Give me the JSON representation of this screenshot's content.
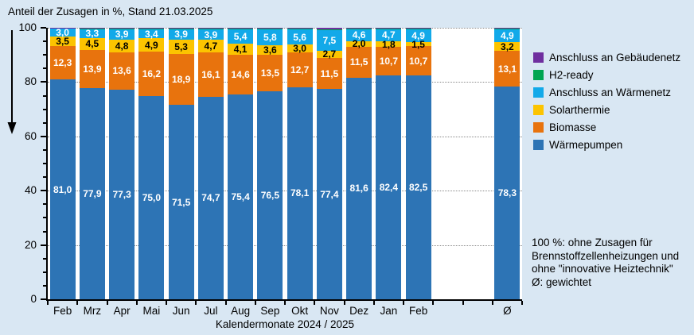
{
  "title": "Anteil der Zusagen in %, Stand 21.03.2025",
  "colors": {
    "background": "#d9e7f3",
    "plot_background": "#ffffff",
    "axis": "#000000",
    "gridline": "#8a8a8a",
    "waermepumpen": "#2d74b5",
    "biomasse": "#e8730d",
    "solarthermie": "#fcc400",
    "waermenetz": "#12a9e9",
    "h2ready": "#00a551",
    "gebaeudenetz": "#6f2f9f"
  },
  "chart_data": {
    "type": "bar",
    "stacked": true,
    "stacked_to_100": true,
    "title": "Anteil der Zusagen in %, Stand 21.03.2025",
    "xlabel": "Kalendermonate 2024 / 2025",
    "ylabel": "Anteil der Zusagen in %",
    "ylim": [
      0,
      100
    ],
    "y_major_ticks": [
      0,
      20,
      40,
      60,
      80,
      100
    ],
    "y_minor_tick_step": 5,
    "grid": "dotted horizontal at major ticks",
    "legend_position": "right",
    "categories": [
      "Feb",
      "Mrz",
      "Apr",
      "Mai",
      "Jun",
      "Jul",
      "Aug",
      "Sep",
      "Okt",
      "Nov",
      "Dez",
      "Jan",
      "Feb",
      "Ø"
    ],
    "gap_before_last_category": true,
    "series": [
      {
        "name": "Wärmepumpen",
        "color": "#2d74b5",
        "show_labels": true,
        "label_color": "#ffffff",
        "values": [
          81.0,
          77.9,
          77.3,
          75.0,
          71.5,
          74.7,
          75.4,
          76.5,
          78.1,
          77.4,
          81.6,
          82.4,
          82.5,
          78.3
        ]
      },
      {
        "name": "Biomasse",
        "color": "#e8730d",
        "show_labels": true,
        "label_color": "#ffffff",
        "values": [
          12.3,
          13.9,
          13.6,
          16.2,
          18.9,
          16.1,
          14.6,
          13.5,
          12.7,
          11.5,
          11.5,
          10.7,
          10.7,
          13.1
        ]
      },
      {
        "name": "Solarthermie",
        "color": "#fcc400",
        "show_labels": true,
        "label_color": "#000000",
        "values": [
          3.5,
          4.5,
          4.8,
          4.9,
          5.3,
          4.7,
          4.1,
          3.6,
          3.0,
          2.7,
          2.0,
          1.8,
          1.5,
          3.2
        ]
      },
      {
        "name": "Anschluss an Wärmenetz",
        "color": "#12a9e9",
        "show_labels": true,
        "label_color": "#ffffff",
        "values": [
          3.0,
          3.3,
          3.9,
          3.4,
          3.9,
          3.9,
          5.4,
          5.8,
          5.6,
          7.5,
          4.6,
          4.7,
          4.9,
          4.9
        ]
      },
      {
        "name": "H2-ready",
        "color": "#00a551",
        "show_labels": false,
        "label_color": "#ffffff",
        "values": [
          0.1,
          0.2,
          0.2,
          0.25,
          0.2,
          0.3,
          0.25,
          0.3,
          0.3,
          0.3,
          0.15,
          0.2,
          0.2,
          0.25
        ]
      },
      {
        "name": "Anschluss an Gebäudenetz",
        "color": "#6f2f9f",
        "show_labels": false,
        "label_color": "#ffffff",
        "values": [
          0.1,
          0.2,
          0.2,
          0.25,
          0.2,
          0.3,
          0.25,
          0.3,
          0.3,
          0.6,
          0.15,
          0.2,
          0.2,
          0.25
        ]
      }
    ]
  },
  "legend_order_top_to_bottom": [
    "Anschluss an Gebäudenetz",
    "H2-ready",
    "Anschluss an Wärmenetz",
    "Solarthermie",
    "Biomasse",
    "Wärmepumpen"
  ],
  "note": {
    "lines": [
      "100 %: ohne Zusagen für",
      "Brennstoffzellenheizungen und",
      "ohne \"innovative Heiztechnik\"",
      "Ø: gewichtet"
    ]
  }
}
